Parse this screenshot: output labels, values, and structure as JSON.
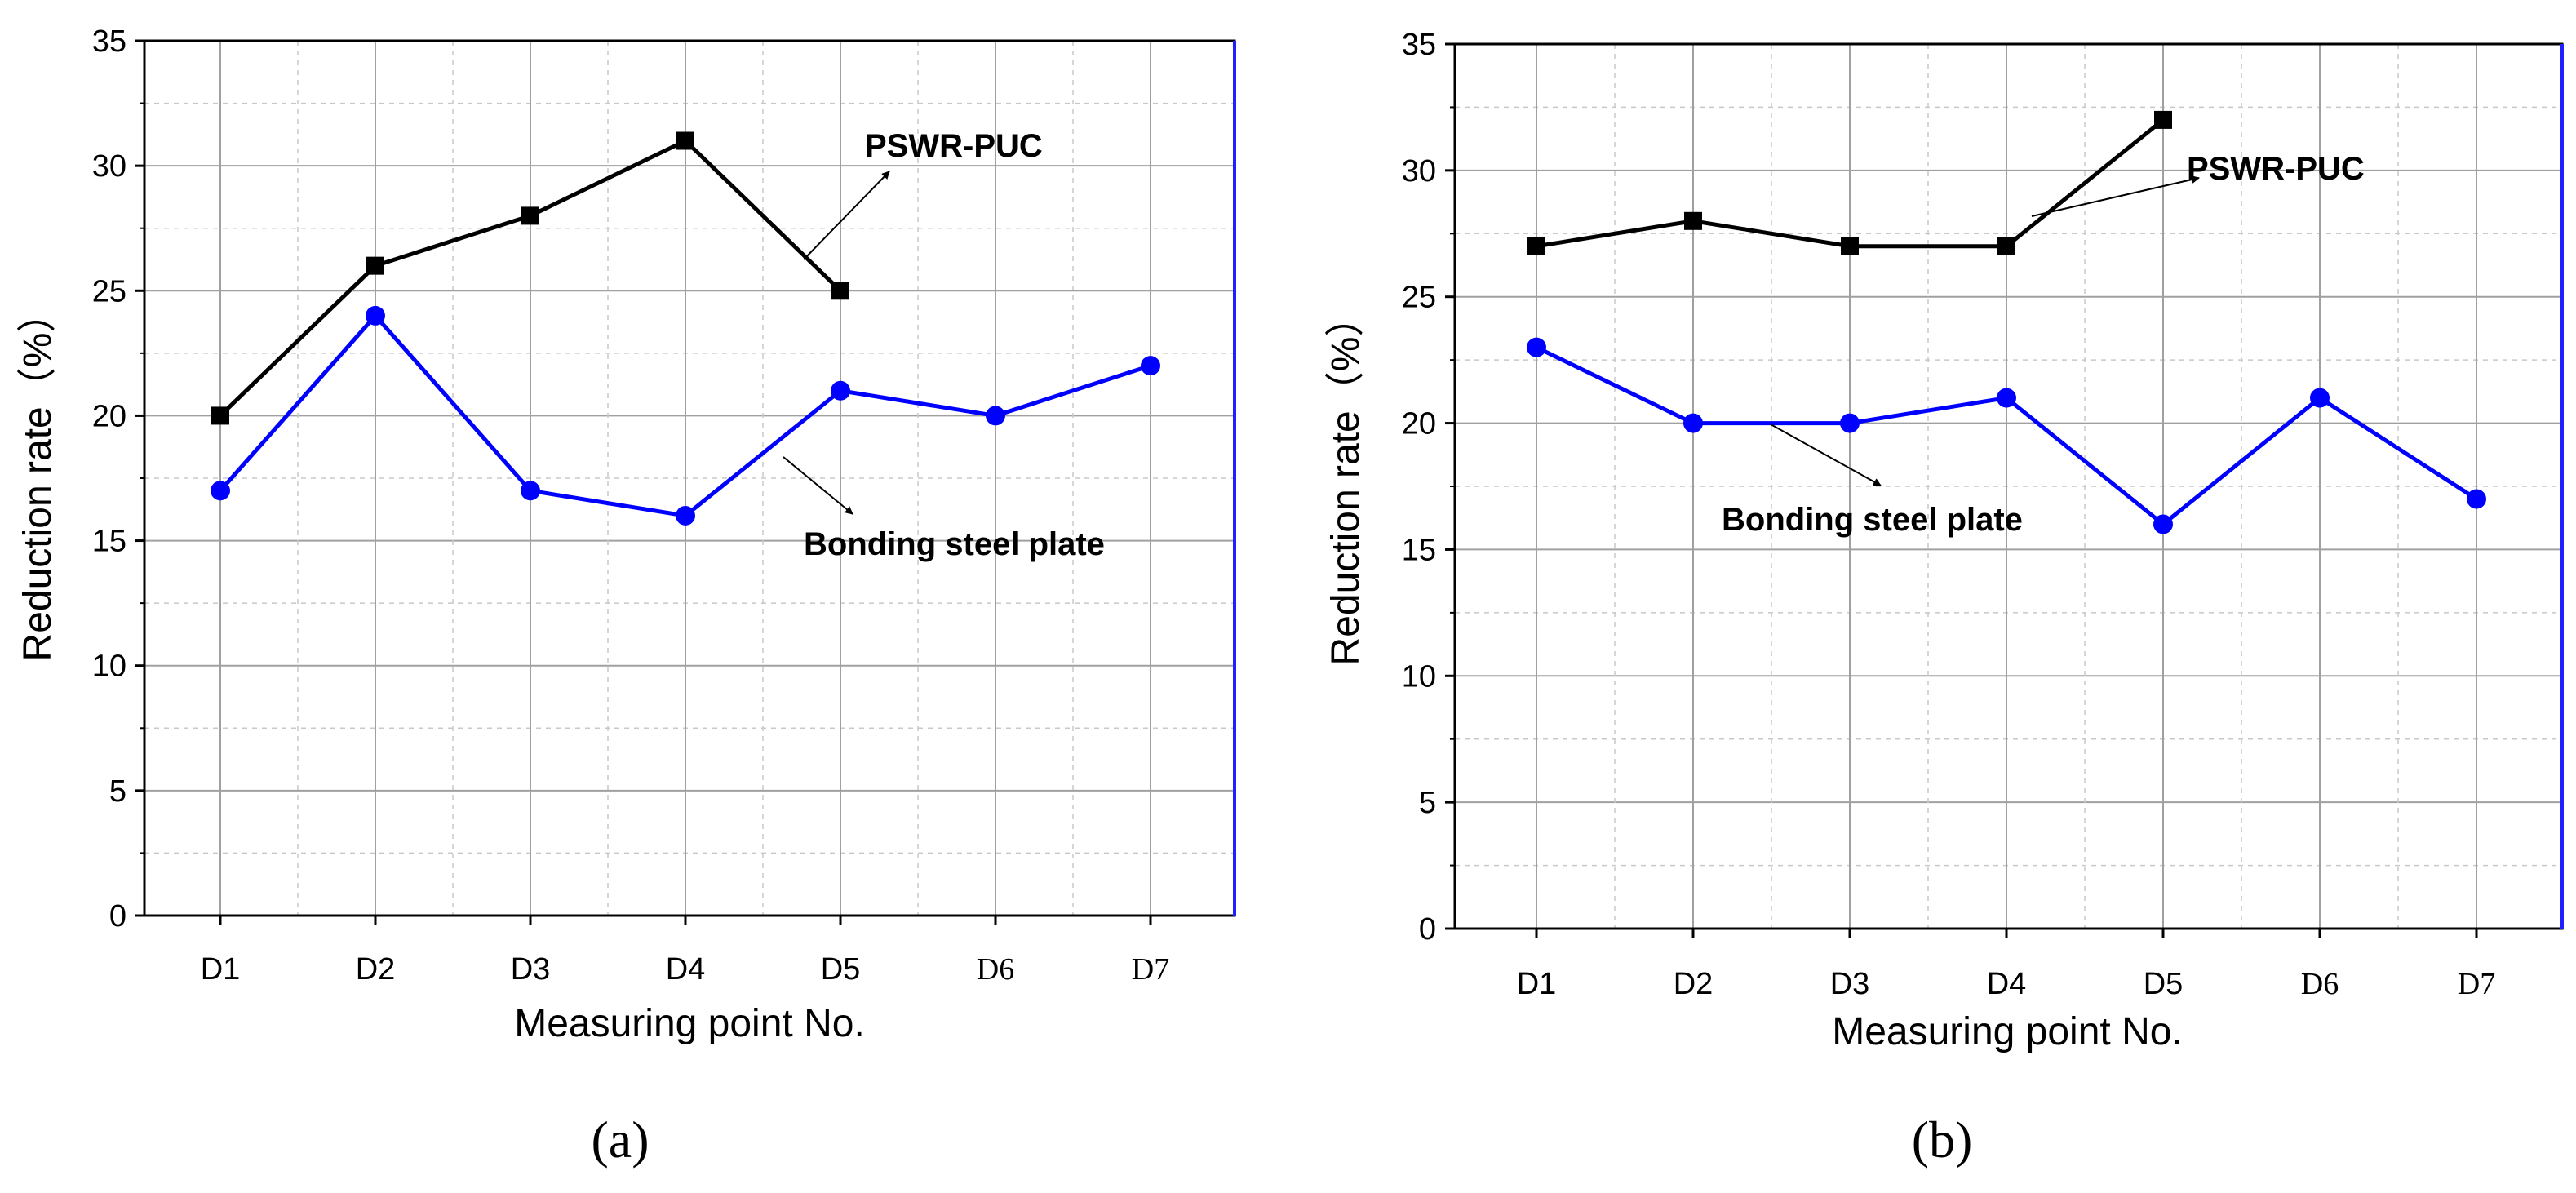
{
  "chart_data": [
    {
      "type": "line",
      "panel_label": "(a)",
      "xlabel": "Measuring point No.",
      "ylabel": "Reduction rate（%）",
      "ylim": [
        0,
        35
      ],
      "yticks": [
        "0",
        "5",
        "10",
        "15",
        "20",
        "25",
        "30",
        "35"
      ],
      "categories": [
        "D1",
        "D2",
        "D3",
        "D4",
        "D5",
        "D6",
        "D7"
      ],
      "grid": true,
      "series": [
        {
          "name": "PSWR-PUC",
          "color": "#000000",
          "marker": "square",
          "values": [
            20,
            26,
            28,
            31,
            25,
            null,
            null
          ]
        },
        {
          "name": "Bonding steel plate",
          "color": "#0000ff",
          "marker": "circle",
          "values": [
            17,
            24,
            17,
            16,
            21,
            20,
            22
          ]
        }
      ],
      "annotations": [
        {
          "text": "PSWR-PUC",
          "series": 0
        },
        {
          "text": "Bonding steel plate",
          "series": 1
        }
      ]
    },
    {
      "type": "line",
      "panel_label": "(b)",
      "xlabel": "Measuring point No.",
      "ylabel": "Reduction rate（%）",
      "ylim": [
        0,
        35
      ],
      "yticks": [
        "0",
        "5",
        "10",
        "15",
        "20",
        "25",
        "30",
        "35"
      ],
      "categories": [
        "D1",
        "D2",
        "D3",
        "D4",
        "D5",
        "D6",
        "D7"
      ],
      "grid": true,
      "series": [
        {
          "name": "PSWR-PUC",
          "color": "#000000",
          "marker": "square",
          "values": [
            27,
            28,
            27,
            27,
            32,
            null,
            null
          ]
        },
        {
          "name": "Bonding steel plate",
          "color": "#0000ff",
          "marker": "circle",
          "values": [
            23,
            20,
            20,
            21,
            16,
            21,
            17
          ]
        }
      ],
      "annotations": [
        {
          "text": "PSWR-PUC",
          "series": 0
        },
        {
          "text": "Bonding steel plate",
          "series": 1
        }
      ]
    }
  ]
}
